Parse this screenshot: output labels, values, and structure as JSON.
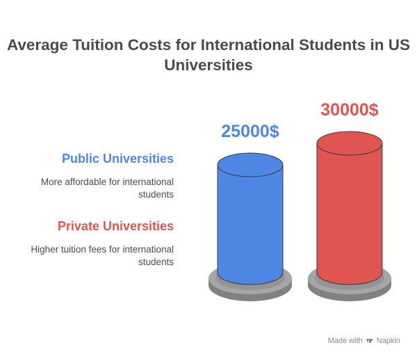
{
  "title": "Average Tuition Costs for International Students in US Universities",
  "colors": {
    "public": "#4e86e4",
    "private": "#e05451",
    "base": "#a6a6a6",
    "text": "#4a4a4a"
  },
  "legend": [
    {
      "label": "Public Universities",
      "description": "More affordable for international students",
      "color": "#4e86e4"
    },
    {
      "label": "Private Universities",
      "description": "Higher tuition fees for international students",
      "color": "#e05451"
    }
  ],
  "chart_data": {
    "type": "bar",
    "categories": [
      "Public Universities",
      "Private Universities"
    ],
    "values": [
      25000,
      30000
    ],
    "value_labels": [
      "25000$",
      "30000$"
    ],
    "colors": [
      "#4e86e4",
      "#e05451"
    ],
    "title": "Average Tuition Costs for International Students in US Universities",
    "xlabel": "",
    "ylabel": ""
  },
  "footer": {
    "made_with": "Made with",
    "brand": "Napkin"
  }
}
